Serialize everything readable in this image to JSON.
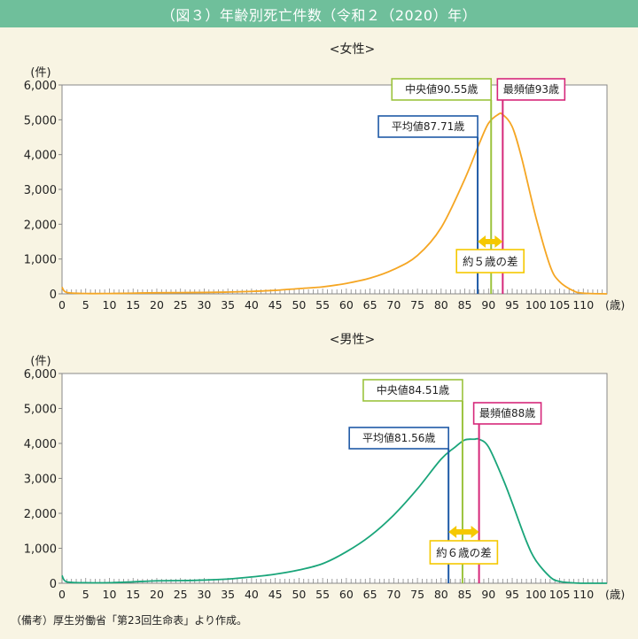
{
  "title": "（図３）年齢別死亡件数（令和２（2020）年）",
  "note": "（備考）厚生労働省「第23回生命表」より作成。",
  "colors": {
    "title_bg": "#6fbf9b",
    "female_line": "#f5a623",
    "male_line": "#1aa57a",
    "mean": "#1f5aa6",
    "median": "#9bc33d",
    "mode": "#d6287a",
    "diff": "#f5c800"
  },
  "chart_data": [
    {
      "type": "line",
      "title": "<女性>",
      "ylabel": "(件)",
      "xlabel": "(歳)",
      "ylim": [
        0,
        6000
      ],
      "xlim": [
        0,
        115
      ],
      "yticks": [
        "0",
        "1,000",
        "2,000",
        "3,000",
        "4,000",
        "5,000",
        "6,000"
      ],
      "yticks_values": [
        0,
        1000,
        2000,
        3000,
        4000,
        5000,
        6000
      ],
      "xticks": [
        "0",
        "5",
        "10",
        "15",
        "20",
        "25",
        "30",
        "35",
        "40",
        "45",
        "50",
        "55",
        "60",
        "65",
        "70",
        "75",
        "80",
        "85",
        "90",
        "95",
        "100",
        "105",
        "110"
      ],
      "xticks_values": [
        0,
        5,
        10,
        15,
        20,
        25,
        30,
        35,
        40,
        45,
        50,
        55,
        60,
        65,
        70,
        75,
        80,
        85,
        90,
        95,
        100,
        105,
        110
      ],
      "series": [
        {
          "x": [
            0,
            1,
            5,
            10,
            15,
            20,
            25,
            30,
            35,
            40,
            45,
            50,
            55,
            60,
            65,
            70,
            75,
            80,
            85,
            88,
            90,
            92,
            93,
            95,
            97,
            100,
            103,
            105,
            108,
            110,
            115
          ],
          "values": [
            190,
            40,
            10,
            10,
            20,
            30,
            35,
            40,
            50,
            70,
            100,
            150,
            200,
            300,
            450,
            700,
            1100,
            1900,
            3300,
            4300,
            4900,
            5150,
            5150,
            4800,
            3900,
            2200,
            800,
            350,
            80,
            20,
            0
          ]
        }
      ],
      "annotations": {
        "mean": {
          "label": "平均値87.71歳",
          "x": 87.71
        },
        "median": {
          "label": "中央値90.55歳",
          "x": 90.55
        },
        "mode": {
          "label": "最頻値93歳",
          "x": 93
        },
        "diff": {
          "label": "約５歳の差",
          "from": 87.71,
          "to": 93
        }
      }
    },
    {
      "type": "line",
      "title": "<男性>",
      "ylabel": "(件)",
      "xlabel": "(歳)",
      "ylim": [
        0,
        6000
      ],
      "xlim": [
        0,
        115
      ],
      "yticks": [
        "0",
        "1,000",
        "2,000",
        "3,000",
        "4,000",
        "5,000",
        "6,000"
      ],
      "yticks_values": [
        0,
        1000,
        2000,
        3000,
        4000,
        5000,
        6000
      ],
      "xticks": [
        "0",
        "5",
        "10",
        "15",
        "20",
        "25",
        "30",
        "35",
        "40",
        "45",
        "50",
        "55",
        "60",
        "65",
        "70",
        "75",
        "80",
        "85",
        "90",
        "95",
        "100",
        "105",
        "110"
      ],
      "xticks_values": [
        0,
        5,
        10,
        15,
        20,
        25,
        30,
        35,
        40,
        45,
        50,
        55,
        60,
        65,
        70,
        75,
        80,
        85,
        90,
        95,
        100,
        105,
        110
      ],
      "series": [
        {
          "x": [
            0,
            1,
            5,
            10,
            15,
            20,
            25,
            30,
            35,
            40,
            45,
            50,
            55,
            60,
            65,
            70,
            75,
            80,
            83,
            85,
            87,
            88,
            90,
            93,
            95,
            98,
            100,
            103,
            105,
            108,
            110,
            115
          ],
          "values": [
            220,
            40,
            15,
            15,
            40,
            70,
            75,
            90,
            120,
            180,
            260,
            380,
            560,
            900,
            1350,
            1950,
            2700,
            3550,
            3900,
            4100,
            4120,
            4120,
            3900,
            3000,
            2300,
            1200,
            650,
            180,
            50,
            10,
            0,
            0
          ]
        }
      ],
      "annotations": {
        "mean": {
          "label": "平均値81.56歳",
          "x": 81.56
        },
        "median": {
          "label": "中央値84.51歳",
          "x": 84.51
        },
        "mode": {
          "label": "最頻値88歳",
          "x": 88
        },
        "diff": {
          "label": "約６歳の差",
          "from": 81.56,
          "to": 88
        }
      }
    }
  ]
}
